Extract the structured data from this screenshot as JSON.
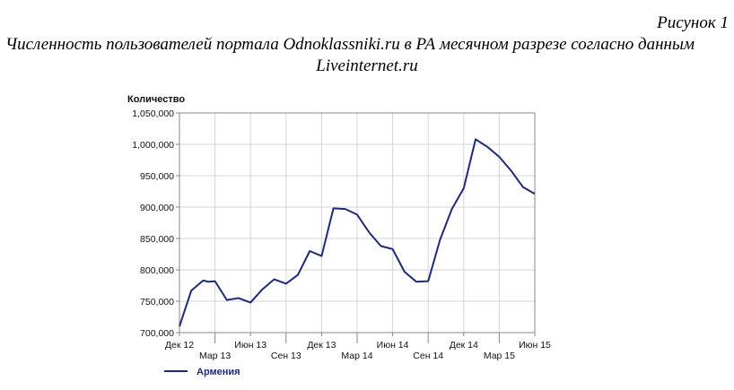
{
  "figure_label": "Рисунок 1",
  "caption_line1": "Численность пользователей портала Odnoklassniki.ru в РА месячном разрезе  согласно данным",
  "caption_line2": "Liveinternet.ru",
  "colors": {
    "line": "#1f2a7a",
    "grid": "#d4d4d4",
    "axis": "#888888"
  },
  "chart_data": {
    "type": "line",
    "title": "",
    "xlabel": "",
    "ylabel": "Количество",
    "ylim": [
      700000,
      1050000
    ],
    "yticks": [
      700000,
      750000,
      800000,
      850000,
      900000,
      950000,
      1000000,
      1050000
    ],
    "ytick_labels": [
      "700,000",
      "750,000",
      "800,000",
      "850,000",
      "900,000",
      "950,000",
      "1,000,000",
      "1,050,000"
    ],
    "grid": true,
    "legend": "bottom-left",
    "x_tick_labels": [
      {
        "label": "Дек 12",
        "index": 0,
        "row": 1
      },
      {
        "label": "Мар 13",
        "index": 3,
        "row": 2
      },
      {
        "label": "Июн 13",
        "index": 6,
        "row": 1
      },
      {
        "label": "Сен 13",
        "index": 9,
        "row": 2
      },
      {
        "label": "Дек 13",
        "index": 12,
        "row": 1
      },
      {
        "label": "Мар 14",
        "index": 15,
        "row": 2
      },
      {
        "label": "Июн 14",
        "index": 18,
        "row": 1
      },
      {
        "label": "Сен 14",
        "index": 21,
        "row": 2
      },
      {
        "label": "Дек 14",
        "index": 24,
        "row": 1
      },
      {
        "label": "Мар 15",
        "index": 27,
        "row": 2
      },
      {
        "label": "Июн 15",
        "index": 30,
        "row": 1
      }
    ],
    "x": [
      "Дек 12",
      "Янв 13",
      "Фев 13",
      "Мар 13",
      "Апр 13",
      "Май 13",
      "Июн 13",
      "Июл 13",
      "Авг 13",
      "Сен 13",
      "Окт 13",
      "Ноя 13",
      "Дек 13",
      "Янв 14",
      "Фев 14",
      "Мар 14",
      "Апр 14",
      "Май 14",
      "Июн 14",
      "Июл 14",
      "Авг 14",
      "Сен 14",
      "Окт 14",
      "Ноя 14",
      "Дек 14",
      "Янв 15",
      "Фев 15",
      "Мар 15",
      "Апр 15",
      "Май 15",
      "Июн 15"
    ],
    "series": [
      {
        "name": "Армения",
        "points": [
          [
            0,
            710000
          ],
          [
            1,
            767000
          ],
          [
            2,
            783000
          ],
          [
            2.5,
            781000
          ],
          [
            3,
            782000
          ],
          [
            4,
            752000
          ],
          [
            5,
            755000
          ],
          [
            6,
            748000
          ],
          [
            7,
            769000
          ],
          [
            8,
            785000
          ],
          [
            9,
            778000
          ],
          [
            10,
            792000
          ],
          [
            11,
            830000
          ],
          [
            12,
            822000
          ],
          [
            13,
            898000
          ],
          [
            14,
            897000
          ],
          [
            15,
            888000
          ],
          [
            16,
            860000
          ],
          [
            17,
            838000
          ],
          [
            18,
            833000
          ],
          [
            19,
            797000
          ],
          [
            20,
            781000
          ],
          [
            21,
            782000
          ],
          [
            22,
            848000
          ],
          [
            23,
            897000
          ],
          [
            24,
            930000
          ],
          [
            25,
            1008000
          ],
          [
            26,
            996000
          ],
          [
            27,
            980000
          ],
          [
            28,
            958000
          ],
          [
            29,
            932000
          ],
          [
            30,
            921000
          ]
        ]
      }
    ]
  }
}
